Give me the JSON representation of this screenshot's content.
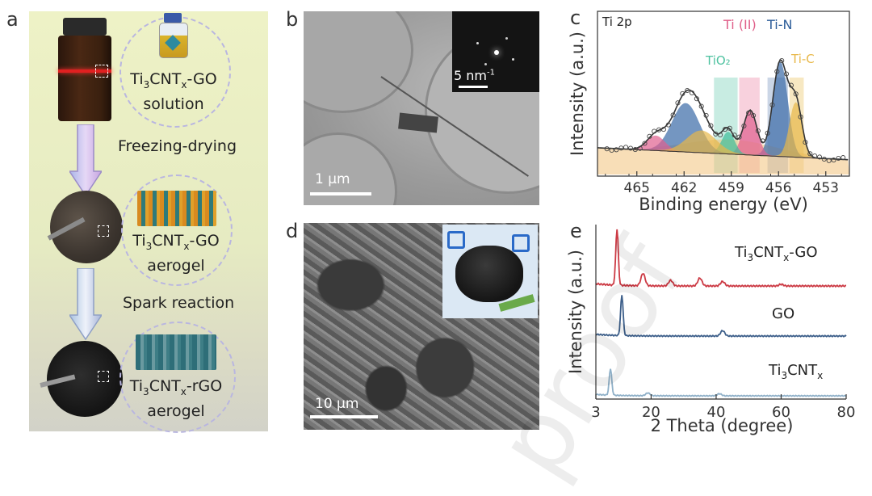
{
  "panel_labels": {
    "a": "a",
    "b": "b",
    "c": "c",
    "d": "d",
    "e": "e"
  },
  "panel_a": {
    "solution_line1": "Ti",
    "solution_sub": "3",
    "solution_line1b": "CNT",
    "solution_subx": "x",
    "solution_line1c": "-GO",
    "solution_line2": "solution",
    "step1": "Freezing-drying",
    "aerogel_line2": "aerogel",
    "aerogel_line1c": "-GO",
    "step2": "Spark reaction",
    "rgo_line1c": "-rGO",
    "rgo_line2": "aerogel"
  },
  "panel_b": {
    "scale_main": "1 μm",
    "scale_inset": "5 nm",
    "scale_inset_sup": "-1"
  },
  "panel_d": {
    "scale_main": "10 μm"
  },
  "watermark": "proof",
  "chart_data": [
    {
      "type": "line",
      "panel": "c",
      "title": "Ti 2p",
      "xlabel": "Binding energy (eV)",
      "ylabel": "Intensity (a.u.)",
      "xlim": [
        467.5,
        451.5
      ],
      "xticks": [
        "465",
        "462",
        "459",
        "456",
        "453"
      ],
      "xtick_values": [
        465,
        462,
        459,
        456,
        453
      ],
      "annotations": [
        {
          "text": "Ti (II)",
          "color": "#e0608a"
        },
        {
          "text": "Ti-N",
          "color": "#2e5e9a"
        },
        {
          "text": "TiO₂",
          "color": "#4ec2a0"
        },
        {
          "text": "Ti-C",
          "color": "#e8b84a"
        }
      ],
      "peaks": [
        {
          "name": "Ti-N",
          "center": 455.9,
          "height": 0.78,
          "width": 0.65,
          "color": "#3a6aa8"
        },
        {
          "name": "Ti (II)",
          "center": 457.8,
          "height": 0.37,
          "width": 0.6,
          "color": "#e06090"
        },
        {
          "name": "TiO2",
          "center": 459.2,
          "height": 0.18,
          "width": 0.55,
          "color": "#3fbf9b"
        },
        {
          "name": "Ti-C",
          "center": 454.9,
          "height": 0.45,
          "width": 0.55,
          "color": "#e8b84a"
        },
        {
          "name": "Ti-N sat",
          "center": 461.9,
          "height": 0.4,
          "width": 1.2,
          "color": "#3a6aa8"
        },
        {
          "name": "Ti (II) sat",
          "center": 463.8,
          "height": 0.12,
          "width": 0.8,
          "color": "#e06090"
        },
        {
          "name": "Ti-C sat",
          "center": 460.9,
          "height": 0.18,
          "width": 1.3,
          "color": "#e8b84a"
        }
      ],
      "bands": [
        {
          "name": "TiO2",
          "from": 460.1,
          "to": 458.6,
          "color": "#b6e6d8"
        },
        {
          "name": "Ti (II)",
          "from": 458.5,
          "to": 457.2,
          "color": "#f6c2d2"
        },
        {
          "name": "Ti-N",
          "from": 456.7,
          "to": 455.4,
          "color": "#b9c8de"
        },
        {
          "name": "Ti-C",
          "from": 455.3,
          "to": 454.4,
          "color": "#f4e0ae"
        }
      ]
    },
    {
      "type": "line",
      "panel": "e",
      "xlabel": "2 Theta (degree)",
      "ylabel": "Intensity (a.u.)",
      "xlim": [
        3,
        80
      ],
      "xticks": [
        "3",
        "20",
        "40",
        "60",
        "80"
      ],
      "xtick_values": [
        3,
        20,
        40,
        60,
        80
      ],
      "series": [
        {
          "name": "Ti₃CNTₓ-GO",
          "label_main": "Ti",
          "label_sub": "3",
          "label_mid": "CNT",
          "label_subx": "x",
          "label_end": "-GO",
          "color": "#cc3a44",
          "peaks": [
            [
              9.5,
              1.0
            ],
            [
              17.5,
              0.22
            ],
            [
              26,
              0.1
            ],
            [
              35,
              0.14
            ],
            [
              42,
              0.08
            ],
            [
              60,
              0.03
            ]
          ]
        },
        {
          "name": "GO",
          "label_main": "GO",
          "color": "#3d5f8a",
          "peaks": [
            [
              11,
              0.9
            ],
            [
              42,
              0.12
            ]
          ]
        },
        {
          "name": "Ti₃CNTₓ",
          "label_main": "Ti",
          "label_sub": "3",
          "label_mid": "CNT",
          "label_subx": "x",
          "color": "#8fb0c8",
          "peaks": [
            [
              7.5,
              0.75
            ],
            [
              19,
              0.08
            ],
            [
              41,
              0.06
            ]
          ]
        }
      ]
    }
  ]
}
